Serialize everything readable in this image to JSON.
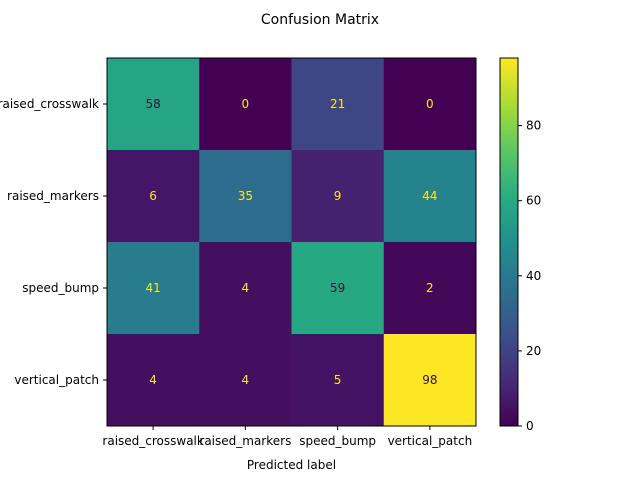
{
  "chart_data": {
    "type": "heatmap",
    "title": "Confusion Matrix",
    "xlabel": "Predicted label",
    "ylabel": "",
    "x_categories": [
      "raised_crosswalk",
      "raised_markers",
      "speed_bump",
      "vertical_patch"
    ],
    "y_categories": [
      "raised_crosswalk",
      "raised_markers",
      "speed_bump",
      "vertical_patch"
    ],
    "values": [
      [
        58,
        0,
        21,
        0
      ],
      [
        6,
        35,
        9,
        44
      ],
      [
        41,
        4,
        59,
        2
      ],
      [
        4,
        4,
        5,
        98
      ]
    ],
    "colormap": "viridis",
    "color_range": [
      0,
      98
    ],
    "colorbar_ticks": [
      0,
      20,
      40,
      60,
      80
    ],
    "text_color_dark": "#30123b",
    "text_color_light": "#fde725"
  }
}
